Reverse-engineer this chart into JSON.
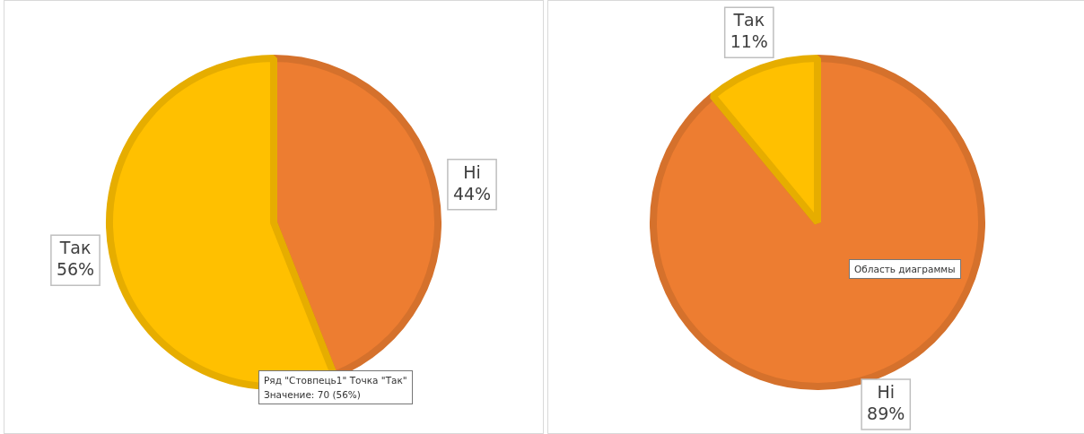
{
  "chart_data": [
    {
      "type": "pie",
      "categories": [
        "Ні",
        "Так"
      ],
      "values": [
        44,
        56
      ],
      "value_labels": [
        "44%",
        "56%"
      ],
      "colors": [
        "#ed7d31",
        "#ffc000"
      ],
      "legend": false,
      "annotations": [
        "Ряд \"Стовпець1\" Точка \"Так\"\nЗначение: 70 (56%)"
      ]
    },
    {
      "type": "pie",
      "categories": [
        "Ні",
        "Так"
      ],
      "values": [
        89,
        11
      ],
      "value_labels": [
        "89%",
        "11%"
      ],
      "colors": [
        "#ed7d31",
        "#ffc000"
      ],
      "legend": false,
      "annotations": [
        "Область диаграммы"
      ]
    }
  ]
}
